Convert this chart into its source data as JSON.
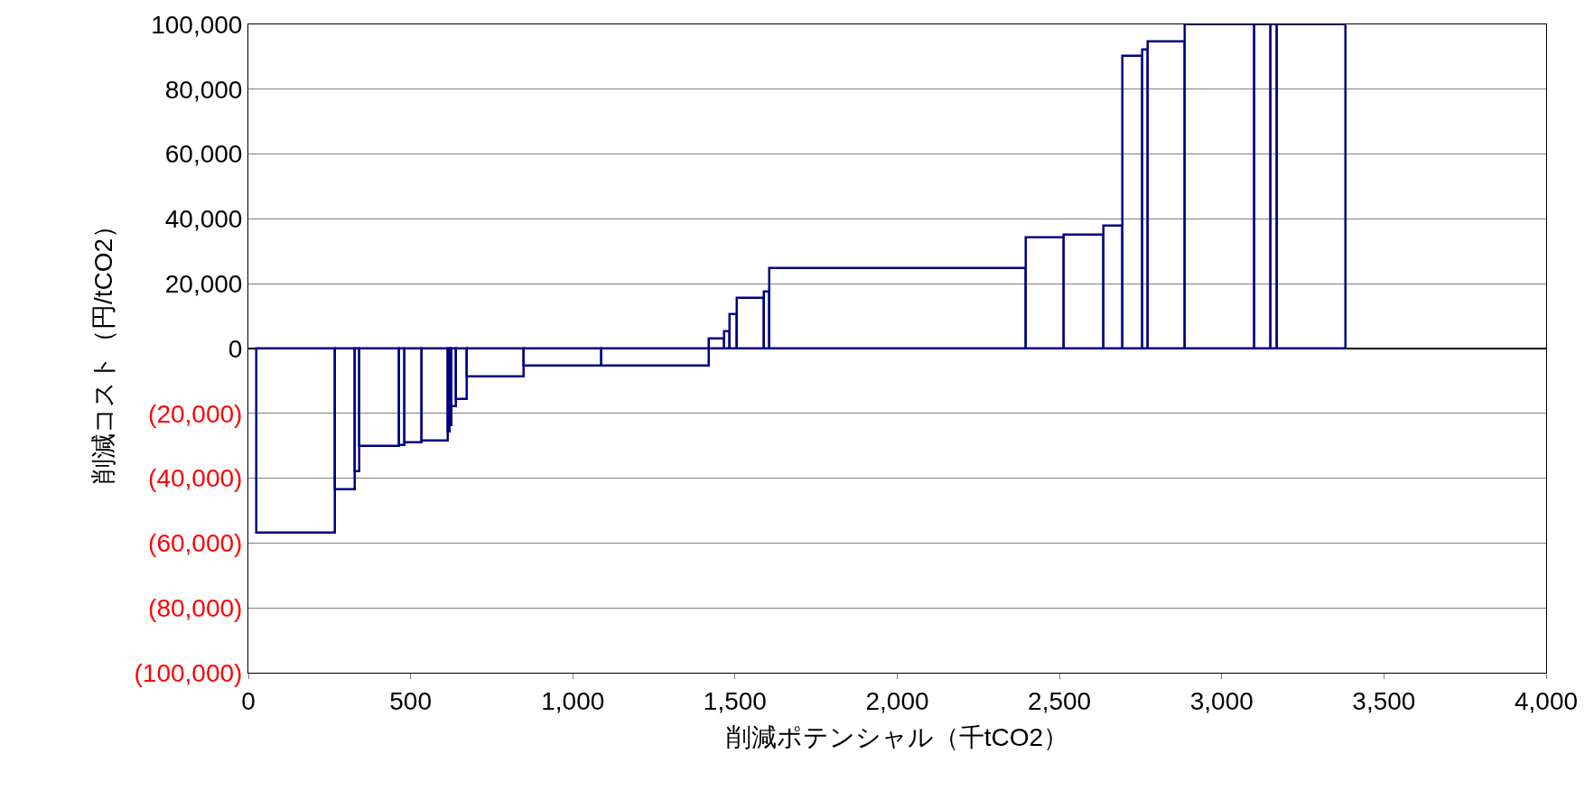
{
  "chart_data": {
    "type": "histogram",
    "xlabel": "削減ポテンシャル（千tCO2）",
    "ylabel": "削減コスト（円/tCO2）",
    "bins": [
      25,
      267,
      329,
      342,
      464,
      482,
      534,
      614,
      620,
      625,
      640,
      674,
      849,
      1087,
      1421,
      1468,
      1485,
      1505,
      1590,
      1607,
      2396,
      2514,
      2637,
      2694,
      2755,
      2772,
      2887,
      3102,
      3151,
      3171,
      3381
    ],
    "values": [
      -56700,
      -43400,
      -37800,
      -30000,
      -29700,
      -29000,
      -28500,
      -25700,
      -23800,
      -17900,
      -15600,
      -8600,
      -5300,
      -5300,
      3100,
      5300,
      10500,
      15600,
      17500,
      24700,
      34300,
      35100,
      38000,
      90300,
      92300,
      94600,
      100000,
      100000,
      100000,
      100000
    ],
    "color": "#000080",
    "xlim": [
      0,
      4000
    ],
    "xticks": [
      0,
      500,
      {
        "value": 1000,
        "label": "1,000"
      },
      {
        "value": 1500,
        "label": "1,500"
      },
      {
        "value": 2000,
        "label": "2,000"
      },
      {
        "value": 2500,
        "label": "2,500"
      },
      {
        "value": 3000,
        "label": "3,000"
      },
      {
        "value": 3500,
        "label": "3,500"
      },
      {
        "value": 4000,
        "label": "4,000"
      }
    ],
    "ylim": [
      -100000,
      100000
    ],
    "yticks": [
      {
        "value": -100000,
        "label": "(100,000)"
      },
      {
        "value": -80000,
        "label": "(80,000)"
      },
      {
        "value": -60000,
        "label": "(60,000)"
      },
      {
        "value": -40000,
        "label": "(40,000)"
      },
      {
        "value": -20000,
        "label": "(20,000)"
      },
      0,
      {
        "value": 20000,
        "label": "20,000"
      },
      {
        "value": 40000,
        "label": "40,000"
      },
      {
        "value": 60000,
        "label": "60,000"
      },
      {
        "value": 80000,
        "label": "80,000"
      },
      {
        "value": 100000,
        "label": "100,000"
      }
    ],
    "grid": "y"
  }
}
